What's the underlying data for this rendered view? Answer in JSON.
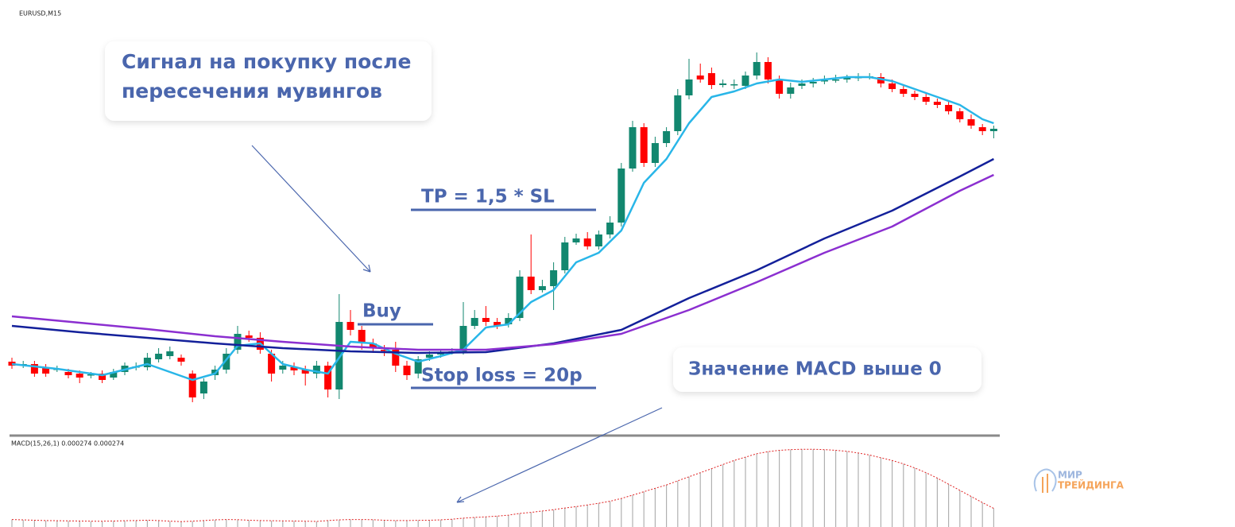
{
  "chart_data": {
    "type": "candlestick",
    "symbol": "EURUSD,M15",
    "ylim": [
      0,
      500
    ],
    "up_color": "#12876f",
    "down_color": "#ff0000",
    "ohlc": [
      [
        85,
        90,
        76,
        80
      ],
      [
        80,
        86,
        77,
        82
      ],
      [
        82,
        86,
        66,
        70
      ],
      [
        78,
        82,
        66,
        70
      ],
      [
        75,
        80,
        72,
        76
      ],
      [
        72,
        76,
        64,
        68
      ],
      [
        70,
        74,
        58,
        65
      ],
      [
        68,
        72,
        64,
        69
      ],
      [
        70,
        74,
        58,
        62
      ],
      [
        65,
        76,
        62,
        72
      ],
      [
        72,
        84,
        68,
        80
      ],
      [
        78,
        84,
        74,
        79
      ],
      [
        78,
        96,
        74,
        90
      ],
      [
        88,
        102,
        84,
        95
      ],
      [
        92,
        104,
        88,
        98
      ],
      [
        90,
        94,
        80,
        85
      ],
      [
        70,
        74,
        34,
        40
      ],
      [
        45,
        64,
        38,
        60
      ],
      [
        68,
        80,
        62,
        75
      ],
      [
        75,
        102,
        70,
        95
      ],
      [
        100,
        130,
        95,
        120
      ],
      [
        118,
        124,
        110,
        115
      ],
      [
        115,
        122,
        95,
        100
      ],
      [
        95,
        100,
        60,
        70
      ],
      [
        75,
        86,
        70,
        80
      ],
      [
        78,
        84,
        68,
        74
      ],
      [
        75,
        80,
        55,
        70
      ],
      [
        70,
        86,
        64,
        80
      ],
      [
        80,
        85,
        40,
        50
      ],
      [
        50,
        170,
        38,
        135
      ],
      [
        135,
        150,
        118,
        125
      ],
      [
        125,
        130,
        100,
        110
      ],
      [
        108,
        114,
        96,
        102
      ],
      [
        100,
        106,
        92,
        99
      ],
      [
        100,
        110,
        72,
        80
      ],
      [
        80,
        86,
        62,
        68
      ],
      [
        70,
        92,
        64,
        88
      ],
      [
        90,
        98,
        86,
        94
      ],
      [
        94,
        100,
        90,
        96
      ],
      [
        97,
        102,
        94,
        98
      ],
      [
        98,
        160,
        94,
        130
      ],
      [
        130,
        150,
        126,
        140
      ],
      [
        140,
        155,
        130,
        135
      ],
      [
        135,
        140,
        126,
        130
      ],
      [
        132,
        146,
        128,
        140
      ],
      [
        140,
        200,
        136,
        192
      ],
      [
        192,
        245,
        170,
        175
      ],
      [
        175,
        188,
        172,
        180
      ],
      [
        180,
        210,
        150,
        200
      ],
      [
        200,
        242,
        196,
        235
      ],
      [
        235,
        246,
        232,
        240
      ],
      [
        240,
        248,
        226,
        230
      ],
      [
        230,
        250,
        226,
        245
      ],
      [
        245,
        268,
        240,
        260
      ],
      [
        260,
        335,
        255,
        328
      ],
      [
        328,
        388,
        324,
        380
      ],
      [
        380,
        385,
        330,
        335
      ],
      [
        335,
        368,
        330,
        360
      ],
      [
        360,
        380,
        355,
        375
      ],
      [
        375,
        428,
        370,
        420
      ],
      [
        420,
        466,
        415,
        440
      ],
      [
        445,
        460,
        436,
        440
      ],
      [
        448,
        455,
        428,
        433
      ],
      [
        433,
        440,
        430,
        435
      ],
      [
        433,
        440,
        428,
        434
      ],
      [
        432,
        450,
        428,
        445
      ],
      [
        445,
        474,
        440,
        462
      ],
      [
        462,
        468,
        435,
        440
      ],
      [
        440,
        445,
        416,
        422
      ],
      [
        422,
        436,
        416,
        430
      ],
      [
        432,
        440,
        428,
        435
      ],
      [
        435,
        442,
        430,
        437
      ],
      [
        438,
        445,
        434,
        439
      ],
      [
        439,
        446,
        436,
        440
      ],
      [
        440,
        446,
        436,
        442
      ],
      [
        442,
        448,
        438,
        443
      ],
      [
        443,
        448,
        440,
        444
      ],
      [
        443,
        448,
        430,
        435
      ],
      [
        435,
        440,
        424,
        428
      ],
      [
        428,
        432,
        418,
        422
      ],
      [
        422,
        426,
        414,
        418
      ],
      [
        418,
        422,
        408,
        412
      ],
      [
        412,
        416,
        404,
        408
      ],
      [
        408,
        412,
        396,
        400
      ],
      [
        400,
        404,
        386,
        390
      ],
      [
        390,
        396,
        378,
        382
      ],
      [
        380,
        384,
        370,
        375
      ],
      [
        375,
        382,
        366,
        378
      ]
    ],
    "moving_averages": [
      {
        "color": "#29b6e8",
        "x": [
          0,
          4,
          8,
          12,
          16,
          18,
          20,
          22,
          24,
          26,
          28,
          30,
          32,
          34,
          36,
          38,
          40,
          42,
          44,
          46,
          48,
          50,
          52,
          54,
          56,
          58,
          60,
          62,
          64,
          66,
          68,
          70,
          72,
          74,
          76,
          78,
          80,
          82,
          84,
          86,
          87
        ],
        "values": [
          82,
          76,
          68,
          82,
          62,
          70,
          105,
          108,
          82,
          75,
          70,
          110,
          108,
          95,
          85,
          92,
          100,
          128,
          132,
          160,
          175,
          210,
          222,
          250,
          310,
          340,
          385,
          418,
          425,
          435,
          440,
          437,
          440,
          443,
          443,
          438,
          428,
          418,
          408,
          390,
          385
        ]
      },
      {
        "color": "#13209a",
        "x": [
          0,
          6,
          12,
          18,
          24,
          30,
          36,
          42,
          48,
          54,
          60,
          66,
          72,
          78,
          84,
          87
        ],
        "values": [
          130,
          122,
          115,
          108,
          102,
          98,
          96,
          97,
          108,
          125,
          165,
          200,
          240,
          275,
          318,
          340
        ]
      },
      {
        "color": "#8b2fd0",
        "x": [
          0,
          6,
          12,
          18,
          24,
          30,
          36,
          42,
          48,
          54,
          60,
          66,
          72,
          78,
          84,
          87
        ],
        "values": [
          142,
          134,
          126,
          117,
          110,
          104,
          100,
          100,
          107,
          120,
          150,
          185,
          222,
          255,
          300,
          320
        ]
      }
    ],
    "macd": {
      "label": "MACD(15,26,1) 0.000274 0.000274",
      "ylim": [
        0,
        0.0013
      ],
      "bar_color": "#b0b0b0",
      "signal_color": "#e02020",
      "values": [
        0.00011,
        0.000105,
        0.0001,
        9.5e-05,
        9.2e-05,
        9e-05,
        8.8e-05,
        8.5e-05,
        8.5e-05,
        8.8e-05,
        9.2e-05,
        9.5e-05,
        0.0001,
        9.5e-05,
        8.5e-05,
        8e-05,
        8.5e-05,
        9.5e-05,
        0.000105,
        0.00011,
        0.000108,
        0.0001,
        9.5e-05,
        9.2e-05,
        9e-05,
        8.8e-05,
        8.5e-05,
        8.2e-05,
        9.5e-05,
        0.000105,
        0.00011,
        0.00011,
        0.000108,
        0.0001,
        9.5e-05,
        9.5e-05,
        9.8e-05,
        0.0001,
        0.000105,
        0.000115,
        0.00013,
        0.00014,
        0.00015,
        0.00016,
        0.000175,
        0.0002,
        0.000215,
        0.000235,
        0.000255,
        0.00028,
        0.0003,
        0.000325,
        0.00035,
        0.00038,
        0.00042,
        0.00047,
        0.00052,
        0.00057,
        0.00062,
        0.00068,
        0.00074,
        0.0008,
        0.00086,
        0.00092,
        0.00098,
        0.00103,
        0.00108,
        0.00111,
        0.00113,
        0.00114,
        0.001145,
        0.001145,
        0.00114,
        0.00113,
        0.001115,
        0.00109,
        0.00106,
        0.00102,
        0.00098,
        0.00093,
        0.00087,
        0.0008,
        0.00072,
        0.00063,
        0.00054,
        0.00045,
        0.00036,
        0.000274
      ]
    },
    "annotations": {
      "signal": [
        "Сигнал на покупку после",
        "пересечения мувингов"
      ],
      "tp": "TP = 1,5 * SL",
      "buy": "Buy",
      "sl": "Stop loss = 20p",
      "macd_note": "Значение MACD выше 0"
    }
  },
  "logo": [
    "МИР",
    "ТРЕЙДИНГА"
  ]
}
